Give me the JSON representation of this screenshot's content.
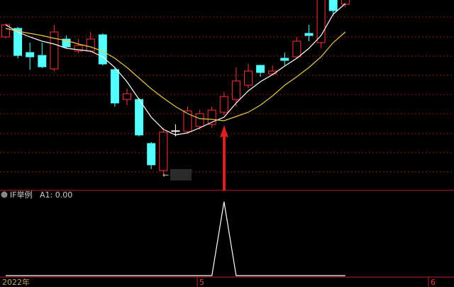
{
  "chart_data": [
    {
      "type": "candlestick",
      "categories": [
        null,
        null,
        null,
        null,
        null,
        null,
        null,
        null,
        null,
        null,
        null,
        null,
        null,
        null,
        null,
        null,
        null,
        null,
        null,
        null,
        null,
        null,
        null,
        null,
        null,
        null,
        null,
        null,
        null
      ],
      "open": [
        216,
        228,
        194,
        190,
        171,
        213,
        196,
        196,
        219,
        170,
        128,
        128,
        66,
        28,
        84,
        83,
        90,
        93,
        110,
        128,
        148,
        176,
        164,
        186,
        188,
        221,
        208,
        290,
        262
      ],
      "close": [
        233,
        190,
        188,
        174,
        223,
        202,
        204,
        213,
        178,
        123,
        136,
        78,
        36,
        82,
        84,
        112,
        108,
        113,
        132,
        154,
        168,
        166,
        168,
        183,
        210,
        218,
        275,
        253,
        300
      ],
      "high": [
        235,
        230,
        208,
        208,
        233,
        218,
        213,
        223,
        221,
        173,
        143,
        130,
        68,
        88,
        93,
        118,
        113,
        118,
        138,
        173,
        178,
        176,
        176,
        194,
        216,
        233,
        285,
        295,
        310
      ],
      "low": [
        214,
        186,
        170,
        172,
        168,
        200,
        193,
        194,
        176,
        118,
        120,
        76,
        30,
        23,
        76,
        80,
        86,
        88,
        106,
        118,
        144,
        160,
        162,
        176,
        186,
        210,
        200,
        246,
        258
      ],
      "up_color": "#ff3232",
      "down_color": "#54ffff",
      "flat_color": "#ffffff",
      "lines": [
        {
          "color": "#ffffff",
          "values": [
            233,
            223,
            216,
            210,
            206,
            200,
            198,
            196,
            188,
            173,
            153,
            128,
            103,
            86,
            78,
            81,
            88,
            96,
            103,
            123,
            140,
            153,
            163,
            175,
            186,
            200,
            218,
            248,
            263
          ]
        },
        {
          "color": "#e6c84a",
          "values": [
            228,
            224,
            221,
            218,
            214,
            211,
            206,
            202,
            196,
            186,
            173,
            158,
            143,
            130,
            118,
            108,
            101,
            100,
            98,
            104,
            110,
            120,
            133,
            148,
            160,
            173,
            188,
            208,
            223
          ]
        }
      ],
      "ylim": [
        0,
        268
      ],
      "annotation": "←"
    },
    {
      "type": "line",
      "title": "IF举例",
      "value_text": "A1: 0.00",
      "categories": [
        null,
        null,
        null,
        null,
        null,
        null,
        null,
        null,
        null,
        null,
        null,
        null,
        null,
        null,
        null,
        null,
        null,
        null,
        null,
        null,
        null,
        null,
        null,
        null,
        null,
        null,
        null,
        null,
        null
      ],
      "color": "#ffffff",
      "values": [
        0,
        0,
        0,
        0,
        0,
        0,
        0,
        0,
        0,
        0,
        0,
        0,
        0,
        0,
        0,
        0,
        0,
        0,
        1,
        0,
        0,
        0,
        0,
        0,
        0,
        0,
        0,
        0,
        0
      ],
      "ylim": [
        0,
        1
      ],
      "period_labels": [
        "2022年",
        "5",
        "6"
      ]
    }
  ]
}
